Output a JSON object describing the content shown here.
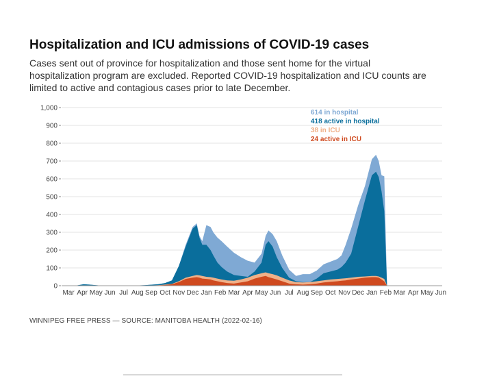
{
  "title": "Hospitalization and ICU admissions of COVID-19 cases",
  "subtitle": "Cases sent out of province for hospitalization and those sent home for the virtual hospitalization program are excluded. Reported COVID-19 hospitalization and ICU counts are limited to active and contagious cases prior to late December.",
  "source": "WINNIPEG FREE PRESS — SOURCE: MANITOBA HEALTH (2022-02-16)",
  "colors": {
    "hospital": "#7fa9d4",
    "active_hospital": "#0a6e9c",
    "icu": "#f0b088",
    "active_icu": "#cf4a1f",
    "grid": "#e3e3e3"
  },
  "chart_data": {
    "type": "area",
    "title": "Hospitalization and ICU admissions of COVID-19 cases",
    "ylim": [
      0,
      1000
    ],
    "yticks": [
      0,
      100,
      200,
      300,
      400,
      500,
      600,
      700,
      800,
      900,
      1000
    ],
    "ytick_labels": [
      "0",
      "100",
      "200",
      "300",
      "400",
      "500",
      "600",
      "700",
      "800",
      "900",
      "1,000"
    ],
    "xlim": [
      0,
      27.6
    ],
    "xtick_labels": [
      "Mar",
      "Apr",
      "May",
      "Jun",
      "Jul",
      "Aug",
      "Sep",
      "Oct",
      "Nov",
      "Dec",
      "Jan",
      "Feb",
      "Mar",
      "Apr",
      "May",
      "Jun",
      "Jul",
      "Aug",
      "Sep",
      "Oct",
      "Nov",
      "Dec",
      "Jan",
      "Feb",
      "Mar",
      "Apr",
      "May",
      "Jun"
    ],
    "grid": true,
    "legend_position": "top-right",
    "x": [
      1.0,
      1.6,
      2.0,
      2.5,
      3.0,
      4.0,
      5.0,
      6.0,
      7.0,
      7.5,
      8.0,
      8.5,
      9.0,
      9.5,
      9.8,
      10.0,
      10.2,
      10.5,
      10.8,
      11.0,
      11.3,
      11.6,
      12.0,
      12.5,
      13.0,
      13.5,
      14.0,
      14.5,
      14.8,
      15.0,
      15.3,
      15.6,
      16.0,
      16.5,
      17.0,
      17.5,
      18.0,
      18.5,
      19.0,
      19.5,
      20.0,
      20.3,
      20.6,
      21.0,
      21.5,
      22.0,
      22.5,
      22.8,
      23.0,
      23.2,
      23.4,
      23.6,
      23.8,
      23.9,
      24.0
    ],
    "series": [
      {
        "name": "614 in hospital",
        "color": "#7fa9d4",
        "values": [
          0,
          8,
          6,
          3,
          0,
          0,
          0,
          3,
          8,
          15,
          30,
          110,
          230,
          330,
          350,
          280,
          250,
          340,
          330,
          300,
          270,
          250,
          220,
          185,
          160,
          140,
          130,
          180,
          280,
          310,
          290,
          250,
          170,
          90,
          55,
          65,
          65,
          85,
          120,
          135,
          150,
          170,
          230,
          320,
          450,
          560,
          710,
          735,
          700,
          620,
          614,
          0,
          0,
          0,
          0
        ]
      },
      {
        "name": "418 active in hospital",
        "color": "#0a6e9c",
        "values": [
          0,
          8,
          6,
          3,
          0,
          0,
          0,
          3,
          8,
          15,
          30,
          110,
          220,
          320,
          340,
          270,
          230,
          230,
          200,
          170,
          130,
          105,
          80,
          60,
          55,
          50,
          80,
          130,
          230,
          250,
          220,
          160,
          100,
          45,
          25,
          20,
          20,
          40,
          70,
          80,
          90,
          105,
          130,
          180,
          330,
          480,
          620,
          640,
          610,
          530,
          418,
          0,
          0,
          0,
          0
        ]
      },
      {
        "name": "38 in ICU",
        "color": "#f0b088",
        "values": [
          0,
          0,
          0,
          0,
          0,
          0,
          0,
          0,
          3,
          6,
          10,
          25,
          45,
          55,
          60,
          58,
          55,
          50,
          48,
          45,
          40,
          35,
          30,
          28,
          35,
          45,
          60,
          70,
          75,
          70,
          65,
          58,
          45,
          30,
          20,
          18,
          20,
          25,
          30,
          35,
          38,
          40,
          42,
          45,
          50,
          52,
          55,
          55,
          52,
          45,
          38,
          0,
          0,
          0,
          0
        ]
      },
      {
        "name": "24 active in ICU",
        "color": "#cf4a1f",
        "values": [
          0,
          0,
          0,
          0,
          0,
          0,
          0,
          0,
          2,
          4,
          8,
          20,
          38,
          45,
          48,
          45,
          40,
          38,
          35,
          30,
          25,
          20,
          15,
          12,
          18,
          25,
          40,
          50,
          55,
          48,
          42,
          35,
          25,
          12,
          8,
          6,
          8,
          12,
          18,
          22,
          25,
          28,
          30,
          35,
          40,
          45,
          48,
          48,
          45,
          35,
          24,
          0,
          0,
          0,
          0
        ]
      }
    ]
  }
}
